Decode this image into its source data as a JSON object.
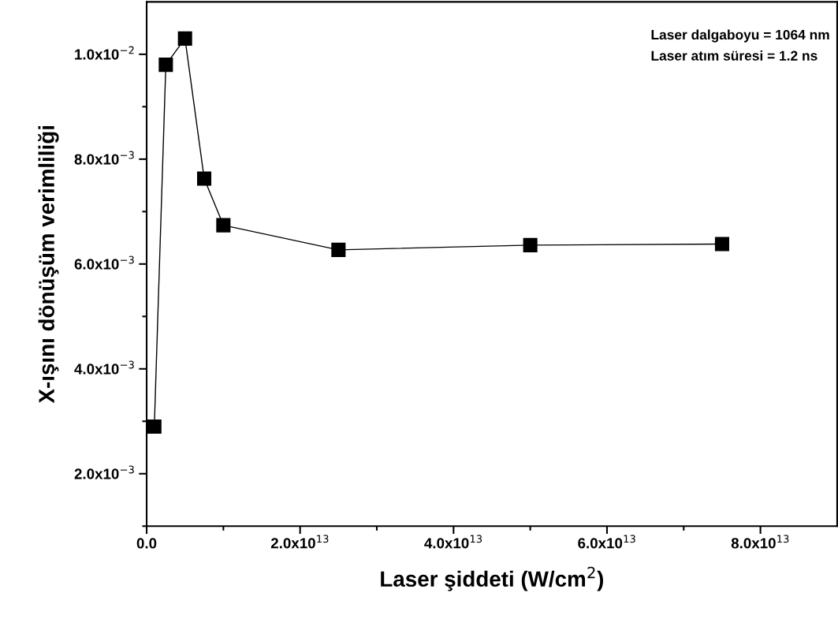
{
  "chart_data": {
    "type": "line",
    "xlabel": "Laser şiddeti (W/cm$^{2}$)",
    "ylabel": "X-ışını dönüşüm verimliliği",
    "annotations": [
      "Laser dalgaboyu = 1064 nm",
      "Laser atım süresi = 1.2 ns"
    ],
    "x": [
      1000000000000.0,
      2500000000000.0,
      5000000000000.0,
      7500000000000.0,
      10000000000000.0,
      25000000000000.0,
      50000000000000.0,
      75000000000000.0
    ],
    "series": [
      {
        "color": "#000000",
        "values": [
          0.0029,
          0.0098,
          0.0103,
          0.00763,
          0.00674,
          0.00627,
          0.00636,
          0.00638
        ]
      }
    ],
    "marker": "square",
    "line_style": "solid",
    "xlim": [
      0,
      90000000000000.0
    ],
    "ylim": [
      0.001,
      0.011
    ],
    "xticks": [
      {
        "value": 0,
        "label": "0.0"
      },
      {
        "value": 10000000000000.0,
        "label": null
      },
      {
        "value": 20000000000000.0,
        "label": "2.0x10$^{13}$"
      },
      {
        "value": 30000000000000.0,
        "label": null
      },
      {
        "value": 40000000000000.0,
        "label": "4.0x10$^{13}$"
      },
      {
        "value": 50000000000000.0,
        "label": null
      },
      {
        "value": 60000000000000.0,
        "label": "6.0x10$^{13}$"
      },
      {
        "value": 70000000000000.0,
        "label": null
      },
      {
        "value": 80000000000000.0,
        "label": "8.0x10$^{13}$"
      }
    ],
    "yticks": [
      {
        "value": 0.001,
        "label": null
      },
      {
        "value": 0.002,
        "label": "2.0x10$^{−3}$"
      },
      {
        "value": 0.003,
        "label": null
      },
      {
        "value": 0.004,
        "label": "4.0x10$^{−3}$"
      },
      {
        "value": 0.005,
        "label": null
      },
      {
        "value": 0.006,
        "label": "6.0x10$^{−3}$"
      },
      {
        "value": 0.007,
        "label": null
      },
      {
        "value": 0.008,
        "label": "8.0x10$^{−3}$"
      },
      {
        "value": 0.009,
        "label": null
      },
      {
        "value": 0.01,
        "label": "1.0x10$^{−2}$"
      }
    ],
    "grid": false,
    "legend": false
  }
}
